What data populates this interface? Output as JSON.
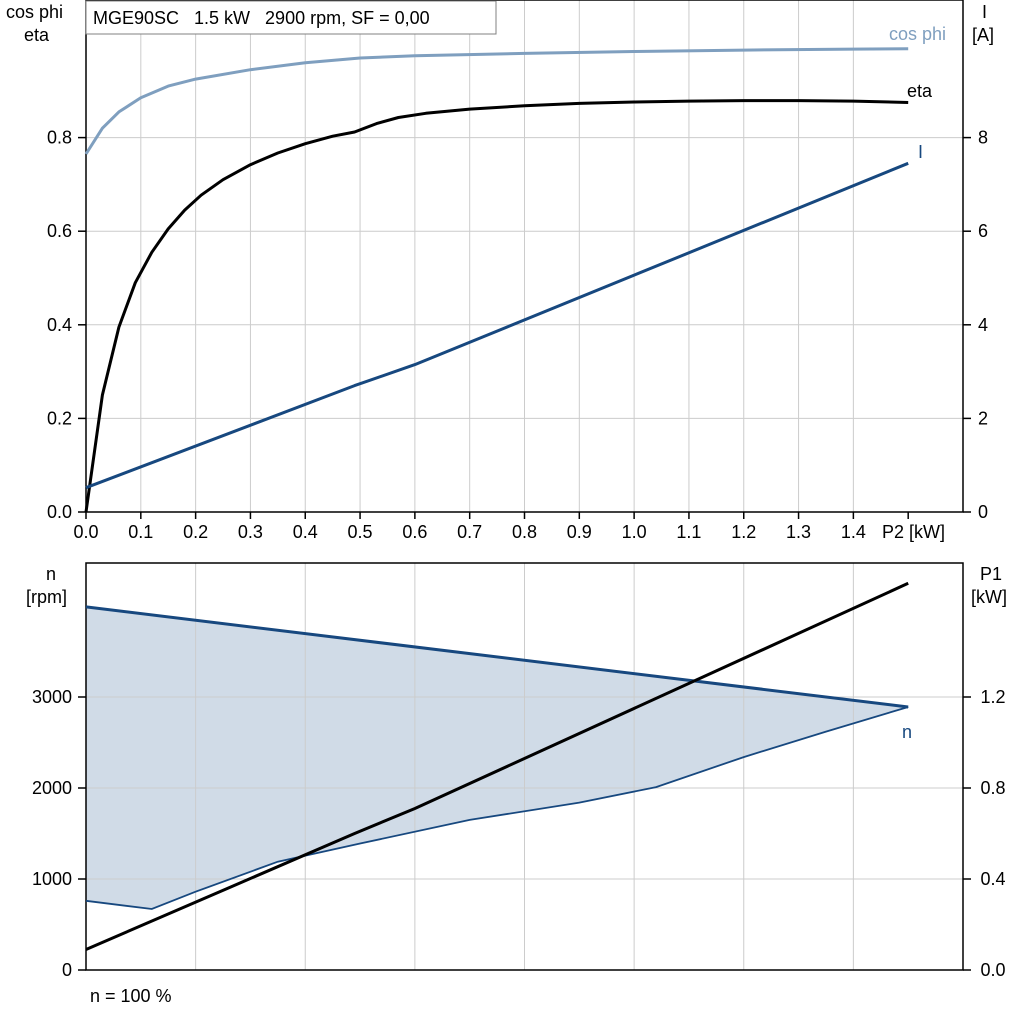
{
  "header": {
    "text": "MGE90SC   1.5 kW   2900 rpm, SF = 0,00"
  },
  "footer": {
    "text": "n = 100 %"
  },
  "colors": {
    "cosphi": "#7f9fbf",
    "eta": "#000000",
    "current": "#17487f",
    "speed": "#17487f",
    "speed_fill": "#d0dbe7",
    "p1": "#000000",
    "grid": "#cccccc"
  },
  "chart_data": [
    {
      "type": "line",
      "x": [
        0,
        0.1,
        0.2,
        0.3,
        0.4,
        0.5,
        0.6,
        0.7,
        0.8,
        0.9,
        1.0,
        1.1,
        1.2,
        1.3,
        1.4
      ],
      "xlabel": "P2 [kW]",
      "xlim": [
        0,
        1.6
      ],
      "left_axis_label": [
        "cos phi",
        "eta"
      ],
      "left_ylim": [
        0,
        1.0
      ],
      "left_ticks": [
        "0.0",
        "0.2",
        "0.4",
        "0.6",
        "0.8"
      ],
      "right_axis_label": [
        "I",
        "[A]"
      ],
      "right_ylim": [
        0,
        10
      ],
      "right_ticks": [
        "0",
        "2",
        "4",
        "6",
        "8"
      ],
      "series": [
        {
          "name": "cos phi",
          "axis": "left",
          "points": [
            [
              0,
              0.765
            ],
            [
              0.03,
              0.82
            ],
            [
              0.06,
              0.855
            ],
            [
              0.1,
              0.885
            ],
            [
              0.15,
              0.91
            ],
            [
              0.2,
              0.925
            ],
            [
              0.3,
              0.945
            ],
            [
              0.4,
              0.96
            ],
            [
              0.5,
              0.97
            ],
            [
              0.6,
              0.975
            ],
            [
              0.8,
              0.98
            ],
            [
              1.0,
              0.984
            ],
            [
              1.2,
              0.987
            ],
            [
              1.4,
              0.989
            ],
            [
              1.5,
              0.99
            ]
          ]
        },
        {
          "name": "eta",
          "axis": "left",
          "points": [
            [
              0,
              0
            ],
            [
              0.03,
              0.25
            ],
            [
              0.06,
              0.395
            ],
            [
              0.09,
              0.49
            ],
            [
              0.12,
              0.555
            ],
            [
              0.15,
              0.605
            ],
            [
              0.18,
              0.645
            ],
            [
              0.21,
              0.677
            ],
            [
              0.25,
              0.71
            ],
            [
              0.3,
              0.742
            ],
            [
              0.35,
              0.767
            ],
            [
              0.4,
              0.787
            ],
            [
              0.45,
              0.803
            ],
            [
              0.49,
              0.812
            ],
            [
              0.53,
              0.83
            ],
            [
              0.57,
              0.843
            ],
            [
              0.62,
              0.852
            ],
            [
              0.7,
              0.861
            ],
            [
              0.8,
              0.868
            ],
            [
              0.9,
              0.873
            ],
            [
              1.0,
              0.876
            ],
            [
              1.1,
              0.878
            ],
            [
              1.2,
              0.879
            ],
            [
              1.3,
              0.879
            ],
            [
              1.4,
              0.878
            ],
            [
              1.5,
              0.875
            ]
          ]
        },
        {
          "name": "I",
          "axis": "right",
          "points": [
            [
              0,
              0.52
            ],
            [
              0.49,
              2.7
            ],
            [
              0.6,
              3.15
            ],
            [
              1.5,
              7.45
            ]
          ]
        }
      ]
    },
    {
      "type": "area",
      "x": [
        0,
        0.1,
        0.2,
        0.3,
        0.4,
        0.5,
        0.6,
        0.7,
        0.8,
        0.9,
        1.0,
        1.1,
        1.2,
        1.3,
        1.4
      ],
      "xlim": [
        0,
        1.6
      ],
      "left_axis_label": [
        "n",
        "[rpm]"
      ],
      "left_ylim": [
        0,
        4000
      ],
      "left_ticks": [
        "0",
        "1000",
        "2000",
        "3000"
      ],
      "right_axis_label": [
        "P1",
        "[kW]"
      ],
      "right_ylim": [
        0,
        1.6
      ],
      "right_ticks": [
        "0.0",
        "0.4",
        "0.8",
        "1.2"
      ],
      "series": [
        {
          "name": "n",
          "role": "max",
          "axis": "left",
          "points": [
            [
              0,
              3990
            ],
            [
              1.5,
              2890
            ]
          ]
        },
        {
          "role": "min",
          "axis": "left",
          "points": [
            [
              0,
              760
            ],
            [
              0.12,
              670
            ],
            [
              0.2,
              860
            ],
            [
              0.35,
              1190
            ],
            [
              0.5,
              1390
            ],
            [
              0.7,
              1650
            ],
            [
              0.9,
              1840
            ],
            [
              1.04,
              2010
            ],
            [
              1.2,
              2340
            ],
            [
              1.35,
              2620
            ],
            [
              1.5,
              2890
            ]
          ]
        },
        {
          "role": "P1",
          "axis": "right",
          "points": [
            [
              0,
              0.09
            ],
            [
              0.49,
              0.6
            ],
            [
              0.6,
              0.71
            ],
            [
              1.5,
              1.7
            ]
          ]
        }
      ]
    }
  ]
}
